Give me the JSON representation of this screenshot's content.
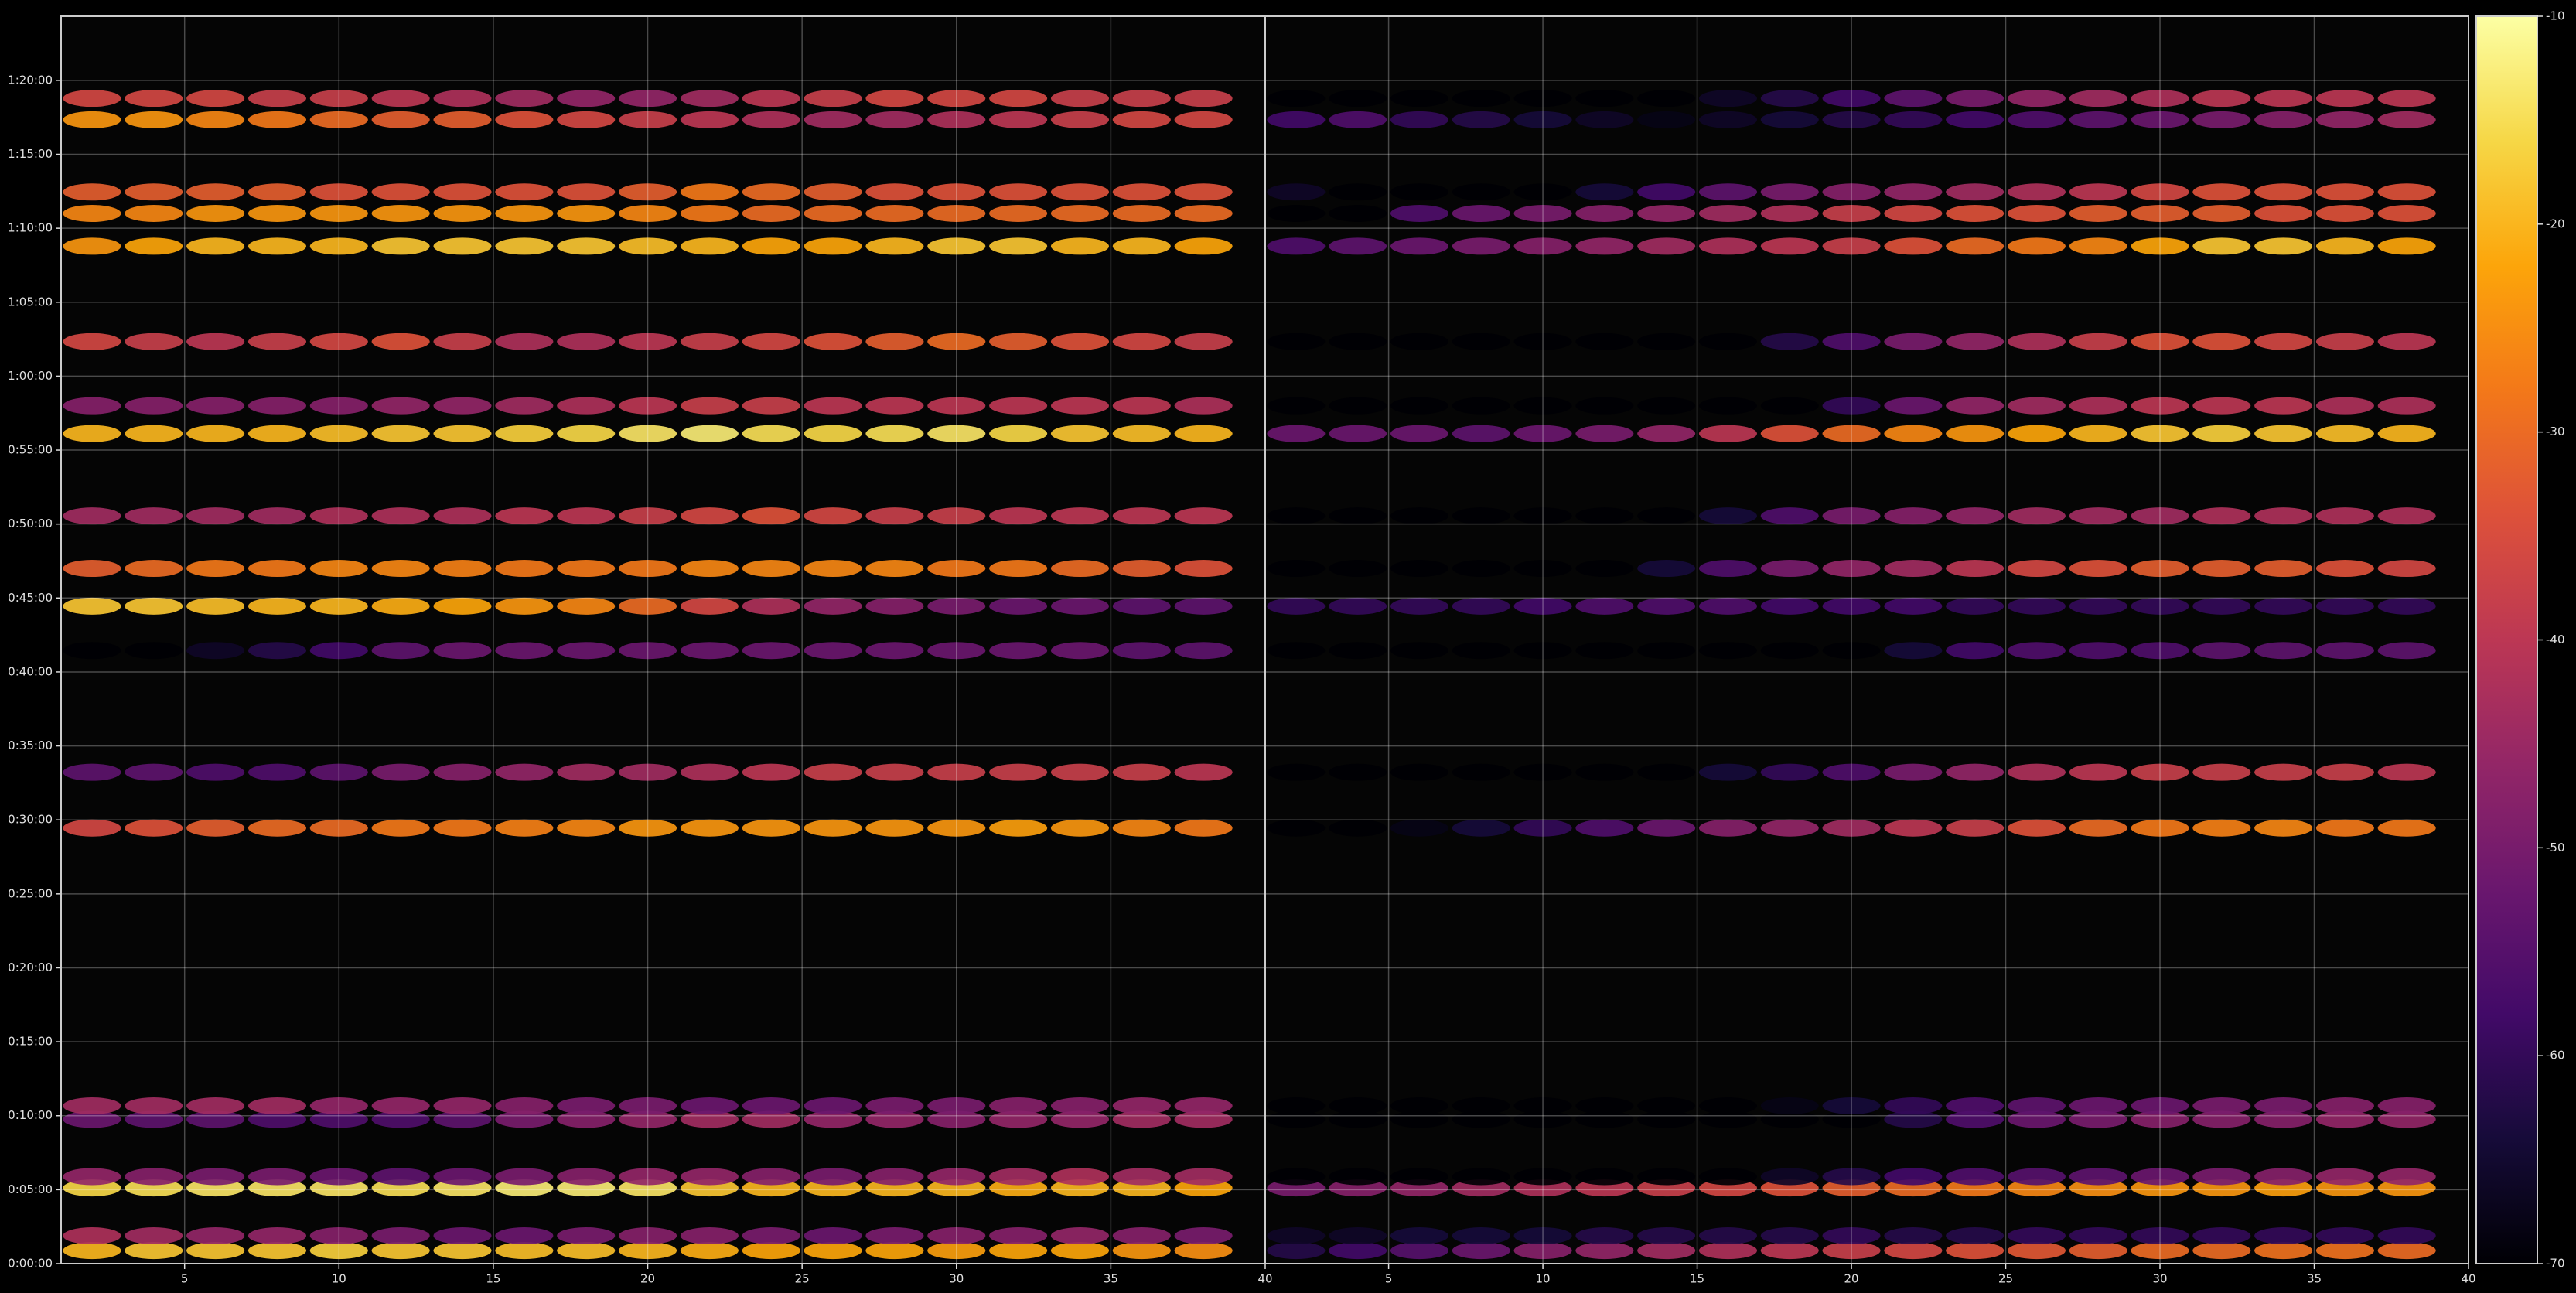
{
  "chart_data": [
    {
      "type": "heatmap",
      "colormap": "inferno",
      "grid": true,
      "xlim": [
        1,
        40
      ],
      "xticks": [
        5,
        10,
        15,
        20,
        25,
        30,
        35,
        40
      ],
      "ylim": [
        0,
        5060
      ],
      "yticks": [
        {
          "value": 0,
          "label": "0:00:00"
        },
        {
          "value": 300,
          "label": "0:05:00"
        },
        {
          "value": 600,
          "label": "0:10:00"
        },
        {
          "value": 900,
          "label": "0:15:00"
        },
        {
          "value": 1200,
          "label": "0:20:00"
        },
        {
          "value": 1500,
          "label": "0:25:00"
        },
        {
          "value": 1800,
          "label": "0:30:00"
        },
        {
          "value": 2100,
          "label": "0:35:00"
        },
        {
          "value": 2400,
          "label": "0:40:00"
        },
        {
          "value": 2700,
          "label": "0:45:00"
        },
        {
          "value": 3000,
          "label": "0:50:00"
        },
        {
          "value": 3300,
          "label": "0:55:00"
        },
        {
          "value": 3600,
          "label": "1:00:00"
        },
        {
          "value": 3900,
          "label": "1:05:00"
        },
        {
          "value": 4200,
          "label": "1:10:00"
        },
        {
          "value": 4500,
          "label": "1:15:00"
        },
        {
          "value": 4800,
          "label": "1:20:00"
        }
      ],
      "x": [
        2,
        4,
        6,
        8,
        10,
        12,
        14,
        16,
        18,
        20,
        22,
        24,
        26,
        28,
        30,
        32,
        34,
        36,
        38
      ],
      "y": [
        53,
        113,
        307,
        353,
        585,
        640,
        1767,
        1993,
        2487,
        2667,
        2820,
        3033,
        3367,
        3480,
        3740,
        4127,
        4260,
        4347,
        4640,
        4727
      ],
      "values": [
        [
          -20,
          -18,
          -18,
          -18,
          -17,
          -18,
          -18,
          -19,
          -19,
          -20,
          -21,
          -22,
          -22,
          -22,
          -23,
          -22,
          -22,
          -24,
          -25
        ],
        [
          -42,
          -44,
          -46,
          -46,
          -48,
          -50,
          -52,
          -52,
          -50,
          -48,
          -48,
          -50,
          -52,
          -50,
          -48,
          -48,
          -46,
          -48,
          -50
        ],
        [
          -16,
          -15,
          -14,
          -14,
          -14,
          -15,
          -14,
          -13,
          -13,
          -14,
          -18,
          -20,
          -20,
          -20,
          -20,
          -21,
          -20,
          -20,
          -22
        ],
        [
          -46,
          -48,
          -50,
          -50,
          -52,
          -54,
          -52,
          -50,
          -48,
          -46,
          -46,
          -48,
          -50,
          -48,
          -46,
          -44,
          -42,
          -44,
          -44
        ],
        [
          -52,
          -54,
          -54,
          -56,
          -56,
          -56,
          -54,
          -50,
          -48,
          -46,
          -44,
          -44,
          -46,
          -46,
          -48,
          -46,
          -46,
          -44,
          -44
        ],
        [
          -44,
          -44,
          -44,
          -44,
          -46,
          -46,
          -46,
          -48,
          -50,
          -50,
          -52,
          -52,
          -52,
          -50,
          -50,
          -48,
          -48,
          -46,
          -46
        ],
        [
          -36,
          -34,
          -32,
          -30,
          -30,
          -28,
          -28,
          -27,
          -26,
          -24,
          -24,
          -24,
          -24,
          -24,
          -24,
          -23,
          -24,
          -26,
          -28
        ],
        [
          -54,
          -54,
          -56,
          -56,
          -54,
          -50,
          -48,
          -46,
          -44,
          -44,
          -42,
          -40,
          -38,
          -38,
          -38,
          -38,
          -38,
          -38,
          -40
        ],
        [
          -70,
          -70,
          -66,
          -62,
          -58,
          -54,
          -52,
          -52,
          -52,
          -52,
          -52,
          -52,
          -52,
          -52,
          -52,
          -52,
          -52,
          -54,
          -54
        ],
        [
          -18,
          -18,
          -19,
          -20,
          -20,
          -21,
          -22,
          -24,
          -26,
          -30,
          -36,
          -42,
          -46,
          -48,
          -50,
          -52,
          -52,
          -54,
          -54
        ],
        [
          -32,
          -30,
          -28,
          -28,
          -26,
          -26,
          -27,
          -28,
          -28,
          -28,
          -26,
          -26,
          -26,
          -26,
          -28,
          -28,
          -30,
          -32,
          -34
        ],
        [
          -44,
          -44,
          -44,
          -44,
          -42,
          -42,
          -42,
          -40,
          -40,
          -38,
          -36,
          -34,
          -36,
          -38,
          -38,
          -40,
          -40,
          -40,
          -40
        ],
        [
          -20,
          -20,
          -20,
          -20,
          -19,
          -18,
          -18,
          -17,
          -16,
          -14,
          -13,
          -15,
          -16,
          -15,
          -14,
          -16,
          -18,
          -19,
          -20
        ],
        [
          -48,
          -48,
          -48,
          -48,
          -48,
          -46,
          -46,
          -44,
          -42,
          -40,
          -38,
          -38,
          -40,
          -40,
          -40,
          -40,
          -40,
          -40,
          -42
        ],
        [
          -36,
          -38,
          -40,
          -38,
          -36,
          -34,
          -38,
          -42,
          -42,
          -40,
          -38,
          -36,
          -34,
          -32,
          -30,
          -32,
          -34,
          -36,
          -38
        ],
        [
          -24,
          -22,
          -20,
          -20,
          -20,
          -18,
          -18,
          -18,
          -18,
          -19,
          -20,
          -22,
          -22,
          -20,
          -18,
          -18,
          -20,
          -20,
          -22
        ],
        [
          -26,
          -26,
          -24,
          -24,
          -24,
          -24,
          -24,
          -24,
          -24,
          -26,
          -28,
          -30,
          -30,
          -30,
          -30,
          -30,
          -30,
          -30,
          -30
        ],
        [
          -32,
          -32,
          -32,
          -32,
          -34,
          -34,
          -34,
          -34,
          -34,
          -32,
          -28,
          -30,
          -32,
          -34,
          -34,
          -34,
          -34,
          -34,
          -34
        ],
        [
          -24,
          -24,
          -26,
          -28,
          -30,
          -32,
          -32,
          -34,
          -36,
          -38,
          -40,
          -42,
          -44,
          -44,
          -42,
          -40,
          -38,
          -36,
          -36
        ],
        [
          -36,
          -36,
          -36,
          -38,
          -38,
          -40,
          -42,
          -44,
          -46,
          -46,
          -44,
          -40,
          -38,
          -36,
          -36,
          -36,
          -38,
          -38,
          -38
        ]
      ]
    },
    {
      "type": "heatmap",
      "colormap": "inferno",
      "grid": true,
      "sharey": true,
      "xlim": [
        1,
        40
      ],
      "xticks": [
        5,
        10,
        15,
        20,
        25,
        30,
        35,
        40
      ],
      "ylim": [
        0,
        5060
      ],
      "x": [
        2,
        4,
        6,
        8,
        10,
        12,
        14,
        16,
        18,
        20,
        22,
        24,
        26,
        28,
        30,
        32,
        34,
        36,
        38
      ],
      "y": [
        53,
        113,
        307,
        353,
        585,
        640,
        1767,
        1993,
        2487,
        2667,
        2820,
        3033,
        3367,
        3480,
        3740,
        4127,
        4260,
        4347,
        4640,
        4727
      ],
      "values": [
        [
          -62,
          -58,
          -55,
          -52,
          -48,
          -46,
          -44,
          -42,
          -40,
          -38,
          -36,
          -34,
          -33,
          -32,
          -30,
          -30,
          -29,
          -29,
          -30
        ],
        [
          -66,
          -66,
          -64,
          -64,
          -64,
          -62,
          -62,
          -62,
          -62,
          -60,
          -62,
          -62,
          -60,
          -60,
          -60,
          -60,
          -60,
          -60,
          -60
        ],
        [
          -50,
          -48,
          -46,
          -44,
          -42,
          -40,
          -38,
          -36,
          -34,
          -32,
          -30,
          -28,
          -26,
          -25,
          -24,
          -24,
          -23,
          -24,
          -24
        ],
        [
          -70,
          -70,
          -70,
          -70,
          -70,
          -70,
          -70,
          -70,
          -66,
          -62,
          -58,
          -56,
          -55,
          -54,
          -52,
          -50,
          -48,
          -46,
          -46
        ],
        [
          -70,
          -70,
          -70,
          -70,
          -70,
          -70,
          -70,
          -70,
          -70,
          -70,
          -62,
          -56,
          -52,
          -50,
          -48,
          -48,
          -48,
          -46,
          -46
        ],
        [
          -70,
          -70,
          -70,
          -70,
          -70,
          -70,
          -70,
          -70,
          -68,
          -64,
          -60,
          -56,
          -54,
          -52,
          -52,
          -50,
          -50,
          -48,
          -48
        ],
        [
          -70,
          -70,
          -68,
          -64,
          -60,
          -56,
          -52,
          -48,
          -46,
          -44,
          -40,
          -38,
          -34,
          -30,
          -28,
          -27,
          -26,
          -28,
          -28
        ],
        [
          -70,
          -70,
          -70,
          -70,
          -70,
          -70,
          -70,
          -64,
          -60,
          -56,
          -50,
          -46,
          -42,
          -40,
          -38,
          -38,
          -38,
          -38,
          -40
        ],
        [
          -70,
          -70,
          -70,
          -70,
          -70,
          -70,
          -70,
          -70,
          -70,
          -70,
          -64,
          -58,
          -56,
          -56,
          -56,
          -54,
          -54,
          -54,
          -54
        ],
        [
          -60,
          -60,
          -60,
          -60,
          -58,
          -56,
          -56,
          -56,
          -58,
          -58,
          -58,
          -60,
          -60,
          -60,
          -60,
          -60,
          -60,
          -60,
          -60
        ],
        [
          -70,
          -70,
          -70,
          -70,
          -70,
          -70,
          -64,
          -56,
          -50,
          -46,
          -44,
          -40,
          -36,
          -34,
          -32,
          -32,
          -32,
          -34,
          -36
        ],
        [
          -70,
          -70,
          -70,
          -70,
          -70,
          -70,
          -70,
          -64,
          -56,
          -50,
          -48,
          -46,
          -44,
          -44,
          -44,
          -42,
          -42,
          -42,
          -42
        ],
        [
          -52,
          -52,
          -52,
          -54,
          -52,
          -50,
          -46,
          -40,
          -34,
          -30,
          -26,
          -24,
          -22,
          -20,
          -18,
          -17,
          -18,
          -19,
          -20
        ],
        [
          -70,
          -70,
          -70,
          -70,
          -70,
          -70,
          -70,
          -70,
          -70,
          -60,
          -52,
          -46,
          -44,
          -42,
          -40,
          -40,
          -40,
          -42,
          -42
        ],
        [
          -70,
          -70,
          -70,
          -70,
          -70,
          -70,
          -70,
          -70,
          -62,
          -56,
          -50,
          -46,
          -42,
          -38,
          -34,
          -34,
          -36,
          -38,
          -40
        ],
        [
          -56,
          -54,
          -52,
          -50,
          -48,
          -46,
          -44,
          -42,
          -40,
          -38,
          -34,
          -30,
          -28,
          -26,
          -22,
          -18,
          -18,
          -20,
          -22
        ],
        [
          -70,
          -70,
          -56,
          -52,
          -50,
          -48,
          -46,
          -44,
          -42,
          -38,
          -36,
          -34,
          -34,
          -32,
          -32,
          -32,
          -34,
          -34,
          -34
        ],
        [
          -66,
          -70,
          -70,
          -70,
          -70,
          -64,
          -58,
          -54,
          -50,
          -48,
          -46,
          -44,
          -42,
          -40,
          -36,
          -34,
          -34,
          -34,
          -34
        ],
        [
          -58,
          -56,
          -60,
          -62,
          -64,
          -66,
          -68,
          -66,
          -64,
          -62,
          -60,
          -58,
          -56,
          -54,
          -52,
          -50,
          -48,
          -46,
          -44
        ],
        [
          -70,
          -70,
          -70,
          -70,
          -70,
          -70,
          -70,
          -66,
          -62,
          -58,
          -54,
          -50,
          -46,
          -44,
          -42,
          -40,
          -40,
          -40,
          -40
        ]
      ],
      "colorbar": {
        "clim": [
          -70,
          -10
        ],
        "ticks": [
          -70,
          -60,
          -50,
          -40,
          -30,
          -20,
          -10
        ]
      }
    }
  ]
}
